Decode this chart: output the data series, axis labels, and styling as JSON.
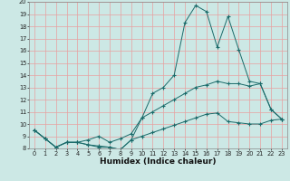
{
  "title": "",
  "xlabel": "Humidex (Indice chaleur)",
  "bg_color": "#cce8e5",
  "plot_bg_color": "#cce8e5",
  "grid_color": "#e8a0a0",
  "line_color": "#1a6b6a",
  "xlim": [
    -0.5,
    23.5
  ],
  "ylim": [
    8,
    20
  ],
  "xticks": [
    0,
    1,
    2,
    3,
    4,
    5,
    6,
    7,
    8,
    9,
    10,
    11,
    12,
    13,
    14,
    15,
    16,
    17,
    18,
    19,
    20,
    21,
    22,
    23
  ],
  "yticks": [
    8,
    9,
    10,
    11,
    12,
    13,
    14,
    15,
    16,
    17,
    18,
    19,
    20
  ],
  "line1_x": [
    0,
    1,
    2,
    3,
    4,
    5,
    6,
    7,
    8,
    9,
    10,
    11,
    12,
    13,
    14,
    15,
    16,
    17,
    18,
    19,
    20,
    21,
    22,
    23
  ],
  "line1_y": [
    9.5,
    8.8,
    8.1,
    8.5,
    8.5,
    8.3,
    8.1,
    8.1,
    7.9,
    8.7,
    10.5,
    12.5,
    13.0,
    14.0,
    18.3,
    19.7,
    19.2,
    16.3,
    18.8,
    16.1,
    13.5,
    13.3,
    11.2,
    10.4
  ],
  "line2_x": [
    0,
    1,
    2,
    3,
    4,
    5,
    6,
    7,
    8,
    9,
    10,
    11,
    12,
    13,
    14,
    15,
    16,
    17,
    18,
    19,
    20,
    21,
    22,
    23
  ],
  "line2_y": [
    9.5,
    8.8,
    8.1,
    8.5,
    8.5,
    8.7,
    9.0,
    8.5,
    8.8,
    9.2,
    10.5,
    11.0,
    11.5,
    12.0,
    12.5,
    13.0,
    13.2,
    13.5,
    13.3,
    13.3,
    13.1,
    13.3,
    11.2,
    10.4
  ],
  "line3_x": [
    0,
    1,
    2,
    3,
    4,
    5,
    6,
    7,
    8,
    9,
    10,
    11,
    12,
    13,
    14,
    15,
    16,
    17,
    18,
    19,
    20,
    21,
    22,
    23
  ],
  "line3_y": [
    9.5,
    8.8,
    8.1,
    8.5,
    8.5,
    8.3,
    8.2,
    8.1,
    7.9,
    8.7,
    9.0,
    9.3,
    9.6,
    9.9,
    10.2,
    10.5,
    10.8,
    10.9,
    10.2,
    10.1,
    10.0,
    10.0,
    10.3,
    10.4
  ],
  "xlabel_fontsize": 6.5,
  "xlabel_bold": true,
  "tick_fontsize": 4.8
}
